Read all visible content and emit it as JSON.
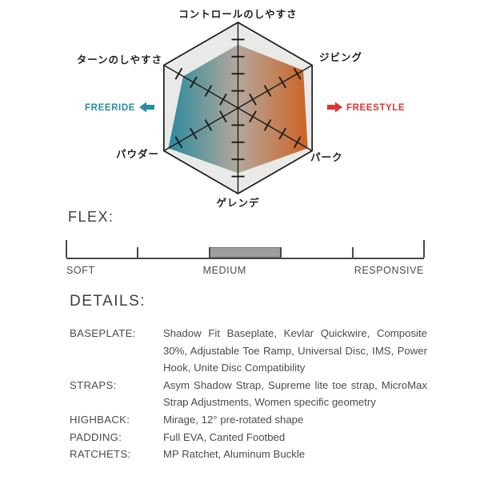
{
  "chart_data": {
    "type": "radar",
    "max": 5,
    "ticks_per_axis": 4,
    "axes": [
      {
        "label": "コントロールのしやすさ",
        "value": 3.7
      },
      {
        "label": "ジビング",
        "value": 4.4
      },
      {
        "label": "パーク",
        "value": 4.7
      },
      {
        "label": "ゲレンデ",
        "value": 3.8
      },
      {
        "label": "パウダー",
        "value": 4.7
      },
      {
        "label": "ターンのしやすさ",
        "value": 3.7
      }
    ],
    "left_annotation": {
      "label": "FREERIDE",
      "direction": "left",
      "color": "#2c8ba0"
    },
    "right_annotation": {
      "label": "FREESTYLE",
      "direction": "right",
      "color": "#dc3531"
    },
    "gradient": [
      "#2b8a9e",
      "#b3a79b",
      "#cd6324"
    ],
    "hexagon_fill": "#e9e9e7",
    "line_color": "#1c1c1c",
    "label_color": "#1f1f1f"
  },
  "flex": {
    "heading": "FLEX:",
    "labels": [
      "SOFT",
      "MEDIUM",
      "RESPONSIVE"
    ],
    "selected": "MEDIUM",
    "segments": 5,
    "bar": {
      "start": 0.4,
      "end": 0.6
    },
    "bar_color": "#9c9ea0"
  },
  "details": {
    "heading": "DETAILS:",
    "rows": [
      {
        "label": "BASEPLATE:",
        "value": "Shadow Fit Baseplate, Kevlar Quickwire, Composite 30%, Adjustable Toe Ramp, Universal Disc, IMS, Power Hook, Unite Disc Compatibility"
      },
      {
        "label": "STRAPS:",
        "value": "Asym Shadow Strap, Supreme lite toe strap, MicroMax Strap Adjustments, Women specific geometry"
      },
      {
        "label": "HIGHBACK:",
        "value": "Mirage, 12° pre-rotated shape"
      },
      {
        "label": "PADDING:",
        "value": "Full EVA, Canted Footbed"
      },
      {
        "label": "RATCHETS:",
        "value": "MP Ratchet, Aluminum Buckle"
      }
    ]
  }
}
